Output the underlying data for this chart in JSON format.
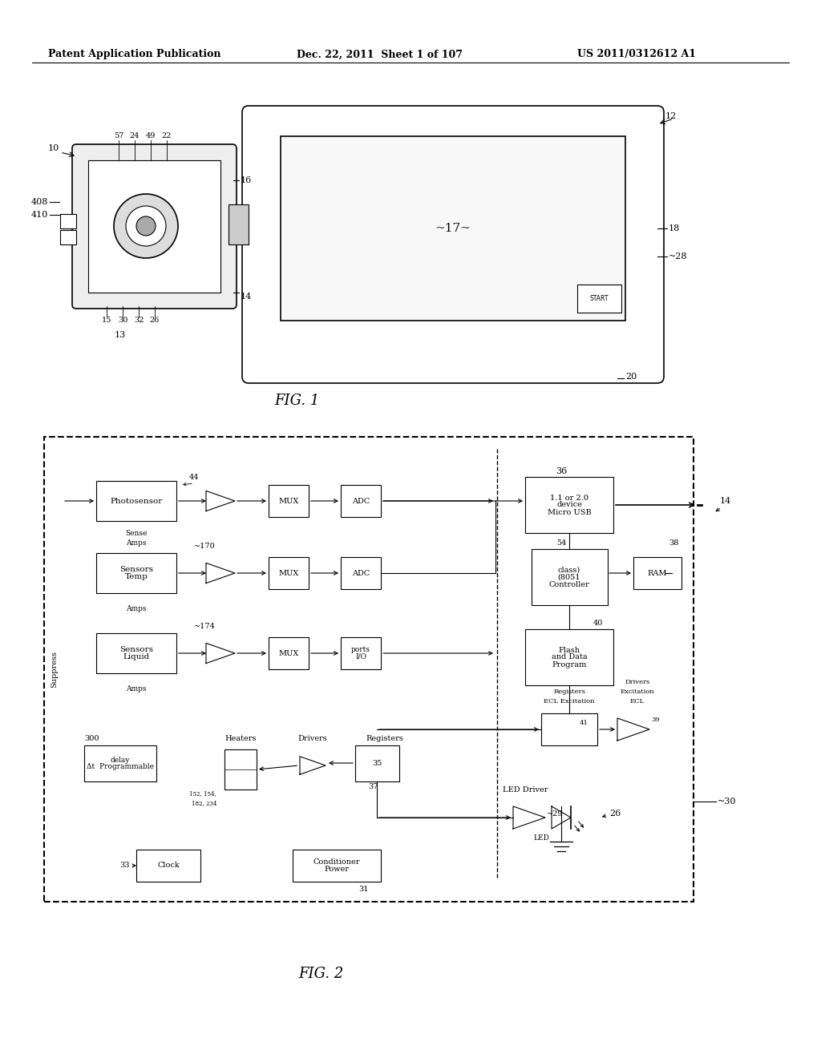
{
  "bg_color": "#ffffff",
  "header_left": "Patent Application Publication",
  "header_mid": "Dec. 22, 2011  Sheet 1 of 107",
  "header_right": "US 2011/0312612 A1",
  "fig1_caption": "FIG. 1",
  "fig2_caption": "FIG. 2"
}
